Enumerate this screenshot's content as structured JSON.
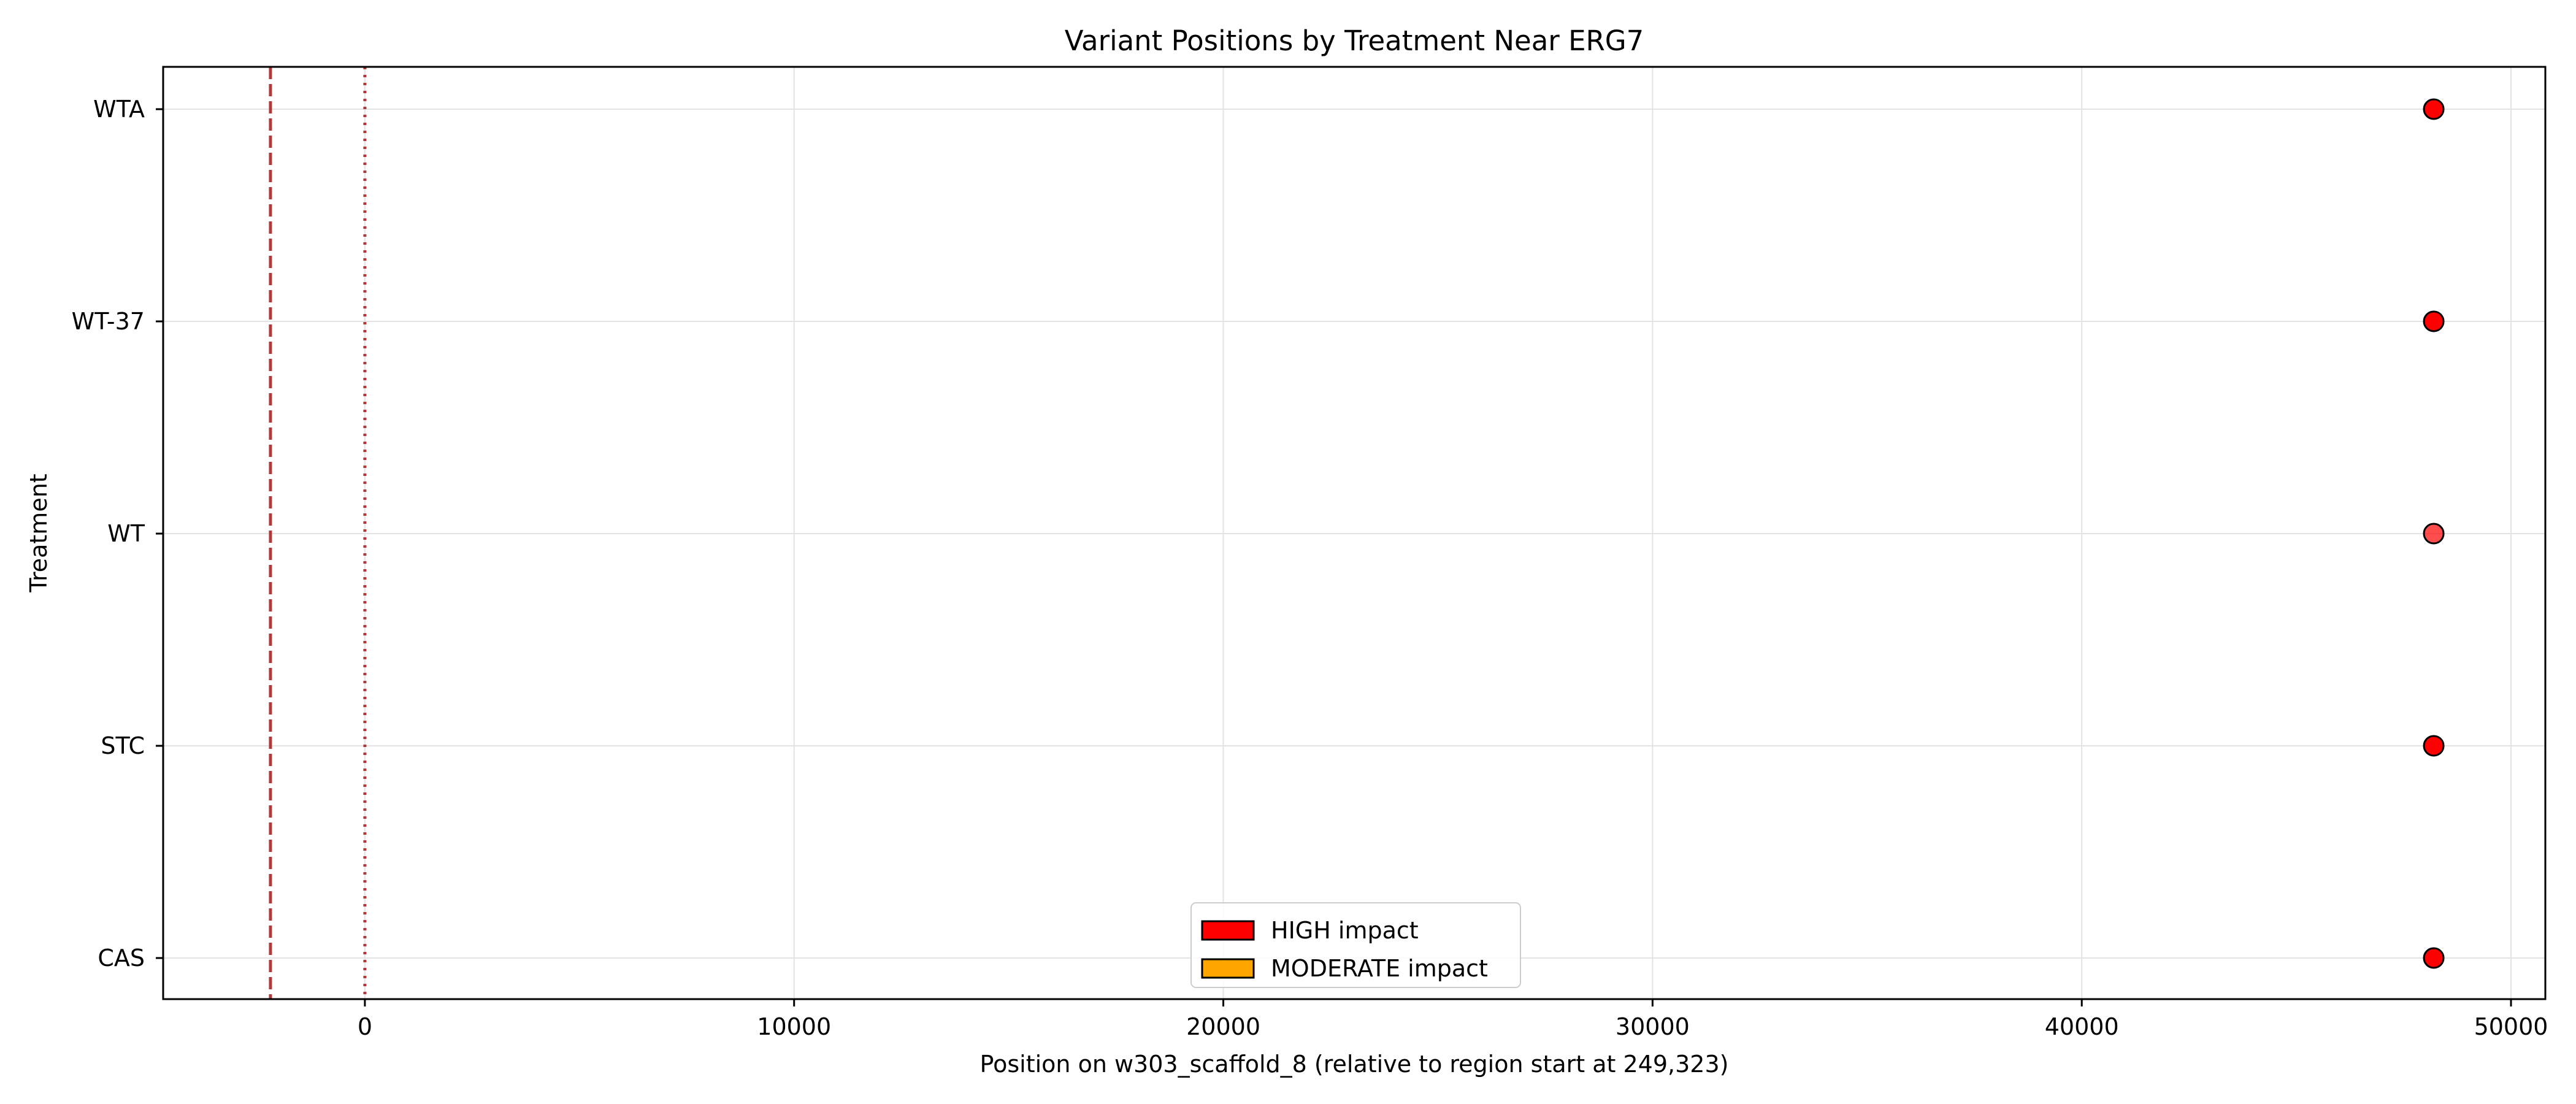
{
  "chart_data": {
    "type": "scatter",
    "title": "Variant Positions by Treatment Near ERG7",
    "xlabel": "Position on w303_scaffold_8 (relative to region start at 249,323)",
    "ylabel": "Treatment",
    "xlim": [
      -4700,
      50800
    ],
    "xticks": [
      0,
      10000,
      20000,
      30000,
      40000,
      50000
    ],
    "categories": [
      "CAS",
      "STC",
      "WT",
      "WT-37",
      "WTA"
    ],
    "grid": true,
    "reference_lines": [
      {
        "x": -2200,
        "style": "dashed",
        "color": "#b03a3a"
      },
      {
        "x": 0,
        "style": "dotted",
        "color": "#b03a3a"
      }
    ],
    "points": [
      {
        "category": "WTA",
        "x": 48200,
        "impact": "HIGH"
      },
      {
        "category": "WT-37",
        "x": 48200,
        "impact": "HIGH"
      },
      {
        "category": "WT",
        "x": 48200,
        "impact": "HIGH",
        "faded": true
      },
      {
        "category": "STC",
        "x": 48200,
        "impact": "HIGH"
      },
      {
        "category": "CAS",
        "x": 48200,
        "impact": "HIGH"
      }
    ],
    "legend": {
      "placement": "bottom-center",
      "entries": [
        {
          "label": "HIGH impact",
          "color": "#ff0000"
        },
        {
          "label": "MODERATE impact",
          "color": "#ffa500"
        }
      ]
    }
  }
}
